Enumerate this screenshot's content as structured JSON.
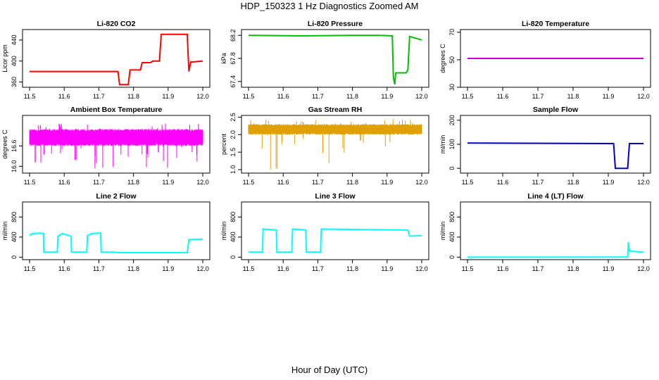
{
  "page": {
    "title": "HDP_150323  1 Hz Diagnostics Zoomed AM",
    "xlabel": "Hour of Day (UTC)"
  },
  "chart_data": [
    {
      "type": "line",
      "title": "Li-820 CO2",
      "ylabel": "Licor ppm",
      "color": "#ff0000",
      "xlim": [
        11.5,
        12.0
      ],
      "ylim": [
        350,
        460
      ],
      "yticks": [
        "360",
        "400",
        "440"
      ],
      "ytick_values": [
        360,
        400,
        440
      ],
      "xticks": [
        "11.5",
        "11.6",
        "11.7",
        "11.8",
        "11.9",
        "12.0"
      ],
      "points": [
        [
          11.5,
          380
        ],
        [
          11.755,
          380
        ],
        [
          11.76,
          355
        ],
        [
          11.785,
          355
        ],
        [
          11.79,
          383
        ],
        [
          11.82,
          383
        ],
        [
          11.825,
          397
        ],
        [
          11.85,
          397
        ],
        [
          11.855,
          400
        ],
        [
          11.875,
          400
        ],
        [
          11.88,
          451
        ],
        [
          11.955,
          451
        ],
        [
          11.96,
          380
        ],
        [
          11.965,
          398
        ],
        [
          12.0,
          400
        ]
      ]
    },
    {
      "type": "line",
      "title": "Li-820 Pressure",
      "ylabel": "kPa",
      "color": "#00c000",
      "xlim": [
        11.5,
        12.0
      ],
      "ylim": [
        67.3,
        68.3
      ],
      "yticks": [
        "67.4",
        "67.8",
        "68.2"
      ],
      "ytick_values": [
        67.4,
        67.8,
        68.2
      ],
      "xticks": [
        "11.5",
        "11.6",
        "11.7",
        "11.8",
        "11.9",
        "12.0"
      ],
      "points": [
        [
          11.5,
          68.2
        ],
        [
          11.65,
          68.19
        ],
        [
          11.8,
          68.2
        ],
        [
          11.88,
          68.2
        ],
        [
          11.915,
          68.19
        ],
        [
          11.918,
          67.48
        ],
        [
          11.922,
          67.35
        ],
        [
          11.925,
          67.55
        ],
        [
          11.955,
          67.55
        ],
        [
          11.96,
          67.6
        ],
        [
          11.965,
          68.18
        ],
        [
          12.0,
          68.12
        ]
      ]
    },
    {
      "type": "line",
      "title": "Li-820 Temperature",
      "ylabel": "degrees C",
      "color": "#cc00cc",
      "xlim": [
        11.5,
        12.0
      ],
      "ylim": [
        30,
        72
      ],
      "yticks": [
        "30",
        "50",
        "70"
      ],
      "ytick_values": [
        30,
        50,
        70
      ],
      "xticks": [
        "11.5",
        "11.6",
        "11.7",
        "11.8",
        "11.9",
        "12.0"
      ],
      "points": [
        [
          11.5,
          51
        ],
        [
          12.0,
          51
        ]
      ]
    },
    {
      "type": "line",
      "title": "Ambient Box Temperature",
      "ylabel": "degrees C",
      "color": "#ff00ff",
      "xlim": [
        11.5,
        12.0
      ],
      "ylim": [
        15.8,
        17.5
      ],
      "yticks": [
        "16.0",
        "16.6"
      ],
      "ytick_values": [
        16.0,
        16.6
      ],
      "xticks": [
        "11.5",
        "11.6",
        "11.7",
        "11.8",
        "11.9",
        "12.0"
      ],
      "band": {
        "low": 16.6,
        "high": 17.1,
        "min": 15.95,
        "max": 17.3
      }
    },
    {
      "type": "line",
      "title": "Gas Stream RH",
      "ylabel": "percent",
      "color": "#e0a000",
      "xlim": [
        11.5,
        12.0
      ],
      "ylim": [
        0.9,
        2.55
      ],
      "yticks": [
        "1.0",
        "1.5",
        "2.0",
        "2.5"
      ],
      "ytick_values": [
        1.0,
        1.5,
        2.0,
        2.5
      ],
      "xticks": [
        "11.5",
        "11.6",
        "11.7",
        "11.8",
        "11.9",
        "12.0"
      ],
      "band": {
        "low": 2.0,
        "high": 2.3,
        "min": 0.95,
        "max": 2.45
      }
    },
    {
      "type": "line",
      "title": "Sample Flow",
      "ylabel": "ml/min",
      "color": "#0000cc",
      "xlim": [
        11.5,
        12.0
      ],
      "ylim": [
        -20,
        220
      ],
      "yticks": [
        "0",
        "100",
        "200"
      ],
      "ytick_values": [
        0,
        100,
        200
      ],
      "xticks": [
        "11.5",
        "11.6",
        "11.7",
        "11.8",
        "11.9",
        "12.0"
      ],
      "points": [
        [
          11.5,
          105
        ],
        [
          11.915,
          103
        ],
        [
          11.92,
          0
        ],
        [
          11.955,
          0
        ],
        [
          11.96,
          103
        ],
        [
          12.0,
          103
        ]
      ]
    },
    {
      "type": "line",
      "title": "Line 2 Flow",
      "ylabel": "ml/min",
      "color": "#00ffff",
      "xlim": [
        11.5,
        12.0
      ],
      "ylim": [
        -50,
        1100
      ],
      "yticks": [
        "0",
        "400",
        "800"
      ],
      "ytick_values": [
        0,
        400,
        800
      ],
      "xticks": [
        "11.5",
        "11.6",
        "11.7",
        "11.8",
        "11.9",
        "12.0"
      ],
      "points": [
        [
          11.5,
          440
        ],
        [
          11.51,
          470
        ],
        [
          11.53,
          480
        ],
        [
          11.54,
          470
        ],
        [
          11.541,
          100
        ],
        [
          11.58,
          100
        ],
        [
          11.582,
          420
        ],
        [
          11.595,
          470
        ],
        [
          11.62,
          420
        ],
        [
          11.621,
          100
        ],
        [
          11.665,
          100
        ],
        [
          11.667,
          430
        ],
        [
          11.68,
          470
        ],
        [
          11.705,
          480
        ],
        [
          11.707,
          100
        ],
        [
          11.75,
          100
        ],
        [
          11.755,
          90
        ],
        [
          11.955,
          90
        ],
        [
          11.96,
          350
        ],
        [
          12.0,
          360
        ]
      ]
    },
    {
      "type": "line",
      "title": "Line 3 Flow",
      "ylabel": "ml/min",
      "color": "#00ffff",
      "xlim": [
        11.5,
        12.0
      ],
      "ylim": [
        -50,
        1100
      ],
      "yticks": [
        "0",
        "400",
        "800"
      ],
      "ytick_values": [
        0,
        400,
        800
      ],
      "xticks": [
        "11.5",
        "11.6",
        "11.7",
        "11.8",
        "11.9",
        "12.0"
      ],
      "points": [
        [
          11.5,
          100
        ],
        [
          11.54,
          100
        ],
        [
          11.542,
          560
        ],
        [
          11.58,
          540
        ],
        [
          11.582,
          100
        ],
        [
          11.625,
          100
        ],
        [
          11.627,
          560
        ],
        [
          11.665,
          540
        ],
        [
          11.667,
          100
        ],
        [
          11.708,
          100
        ],
        [
          11.71,
          560
        ],
        [
          11.96,
          540
        ],
        [
          11.965,
          420
        ],
        [
          12.0,
          430
        ]
      ]
    },
    {
      "type": "line",
      "title": "Line 4 (LT) Flow",
      "ylabel": "ml/min",
      "color": "#00ffff",
      "xlim": [
        11.5,
        12.0
      ],
      "ylim": [
        -50,
        1100
      ],
      "yticks": [
        "0",
        "400",
        "800"
      ],
      "ytick_values": [
        0,
        400,
        800
      ],
      "xticks": [
        "11.5",
        "11.6",
        "11.7",
        "11.8",
        "11.9",
        "12.0"
      ],
      "points": [
        [
          11.5,
          0
        ],
        [
          11.955,
          2
        ],
        [
          11.957,
          300
        ],
        [
          11.96,
          120
        ],
        [
          12.0,
          100
        ]
      ]
    }
  ]
}
